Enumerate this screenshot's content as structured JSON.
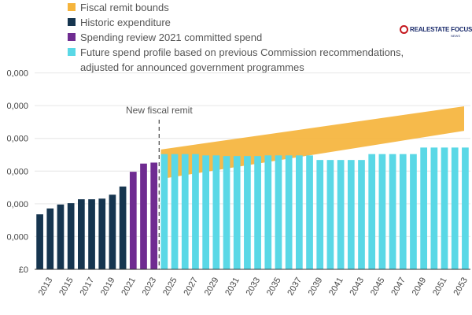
{
  "watermark": {
    "text": "REALESTATE FOCUS",
    "sub": "NEWS"
  },
  "legend": [
    {
      "label": "Fiscal remit bounds",
      "color": "#f5b43c"
    },
    {
      "label": "Historic expenditure",
      "color": "#16354f"
    },
    {
      "label": "Spending review 2021 committed spend",
      "color": "#6f2c91"
    },
    {
      "label": "Future spend profile based on previous Commission recommendations,\nadjusted for announced government programmes",
      "color": "#5ad8e6"
    }
  ],
  "annotation": {
    "text": "New fiscal remit"
  },
  "chart_data": {
    "type": "bar",
    "ylim": [
      0,
      70000
    ],
    "yticks": [
      {
        "value": 0,
        "label": "£0"
      },
      {
        "value": 10000,
        "label": "0,000"
      },
      {
        "value": 20000,
        "label": "0,000"
      },
      {
        "value": 30000,
        "label": "0,000"
      },
      {
        "value": 40000,
        "label": "0,000"
      },
      {
        "value": 50000,
        "label": "0,000"
      },
      {
        "value": 60000,
        "label": "0,000"
      }
    ],
    "categories": [
      2013,
      2014,
      2015,
      2016,
      2017,
      2018,
      2019,
      2020,
      2021,
      2022,
      2023,
      2024,
      2025,
      2026,
      2027,
      2028,
      2029,
      2030,
      2031,
      2032,
      2033,
      2034,
      2035,
      2036,
      2037,
      2038,
      2039,
      2040,
      2041,
      2042,
      2043,
      2044,
      2045,
      2046,
      2047,
      2048,
      2049,
      2050,
      2051,
      2052,
      2053,
      2054
    ],
    "xtick_labels": [
      "2013",
      "2015",
      "2017",
      "2019",
      "2021",
      "2023",
      "2025",
      "2027",
      "2029",
      "2031",
      "2033",
      "2035",
      "2037",
      "2039",
      "2041",
      "2043",
      "2045",
      "2047",
      "2049",
      "2051",
      "2053"
    ],
    "series": [
      {
        "name": "Historic expenditure",
        "color": "#16354f",
        "values": [
          16800,
          18600,
          19800,
          20200,
          21400,
          21400,
          21600,
          22800,
          25300,
          null,
          null,
          null,
          null,
          null,
          null,
          null,
          null,
          null,
          null,
          null,
          null,
          null,
          null,
          null,
          null,
          null,
          null,
          null,
          null,
          null,
          null,
          null,
          null,
          null,
          null,
          null,
          null,
          null,
          null,
          null,
          null,
          null
        ]
      },
      {
        "name": "Spending review 2021 committed spend",
        "color": "#6f2c91",
        "values": [
          null,
          null,
          null,
          null,
          null,
          null,
          null,
          null,
          null,
          29800,
          32300,
          32600,
          null,
          null,
          null,
          null,
          null,
          null,
          null,
          null,
          null,
          null,
          null,
          null,
          null,
          null,
          null,
          null,
          null,
          null,
          null,
          null,
          null,
          null,
          null,
          null,
          null,
          null,
          null,
          null,
          null,
          null
        ]
      },
      {
        "name": "Future spend profile based on previous Commission recommendations, adjusted for announced government programmes",
        "color": "#5ad8e6",
        "values": [
          null,
          null,
          null,
          null,
          null,
          null,
          null,
          null,
          null,
          null,
          null,
          null,
          35200,
          35200,
          35200,
          35200,
          34800,
          34800,
          34600,
          34600,
          34600,
          34600,
          34800,
          34800,
          34800,
          34800,
          34800,
          33400,
          33400,
          33400,
          33400,
          33400,
          35200,
          35200,
          35200,
          35200,
          35200,
          37200,
          37200,
          37200,
          37200,
          37200
        ]
      }
    ],
    "bounds": {
      "name": "Fiscal remit bounds",
      "color": "#f5b43c",
      "x_start": 2025,
      "x_end": 2054,
      "upper_start": 36600,
      "upper_end": 49800,
      "lower_start": 27600,
      "lower_end": 42300
    },
    "remit_line_x": 2024.5,
    "annotation": "New fiscal remit"
  }
}
